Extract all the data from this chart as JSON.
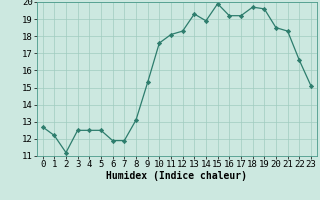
{
  "x": [
    0,
    1,
    2,
    3,
    4,
    5,
    6,
    7,
    8,
    9,
    10,
    11,
    12,
    13,
    14,
    15,
    16,
    17,
    18,
    19,
    20,
    21,
    22,
    23
  ],
  "y": [
    12.7,
    12.2,
    11.2,
    12.5,
    12.5,
    12.5,
    11.9,
    11.9,
    13.1,
    15.3,
    17.6,
    18.1,
    18.3,
    19.3,
    18.9,
    19.9,
    19.2,
    19.2,
    19.7,
    19.6,
    18.5,
    18.3,
    16.6,
    15.1
  ],
  "xlabel": "Humidex (Indice chaleur)",
  "ylim": [
    11,
    20
  ],
  "xlim": [
    -0.5,
    23.5
  ],
  "yticks": [
    11,
    12,
    13,
    14,
    15,
    16,
    17,
    18,
    19,
    20
  ],
  "xticks": [
    0,
    1,
    2,
    3,
    4,
    5,
    6,
    7,
    8,
    9,
    10,
    11,
    12,
    13,
    14,
    15,
    16,
    17,
    18,
    19,
    20,
    21,
    22,
    23
  ],
  "line_color": "#2d7d6d",
  "bg_color": "#cce8e0",
  "grid_color": "#a0ccbf",
  "label_fontsize": 7,
  "tick_fontsize": 6.5
}
